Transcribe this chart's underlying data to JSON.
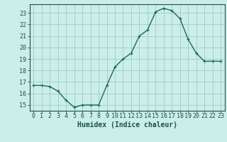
{
  "x": [
    0,
    1,
    2,
    3,
    4,
    5,
    6,
    7,
    8,
    9,
    10,
    11,
    12,
    13,
    14,
    15,
    16,
    17,
    18,
    19,
    20,
    21,
    22,
    23
  ],
  "y": [
    16.7,
    16.7,
    16.6,
    16.2,
    15.4,
    14.8,
    15.0,
    15.0,
    15.0,
    16.7,
    18.3,
    19.0,
    19.5,
    21.0,
    21.5,
    23.1,
    23.4,
    23.2,
    22.5,
    20.7,
    19.5,
    18.8,
    18.8,
    18.8
  ],
  "xlabel": "Humidex (Indice chaleur)",
  "xlim": [
    -0.5,
    23.5
  ],
  "ylim": [
    14.5,
    23.75
  ],
  "yticks": [
    15,
    16,
    17,
    18,
    19,
    20,
    21,
    22,
    23
  ],
  "xticks": [
    0,
    1,
    2,
    3,
    4,
    5,
    6,
    7,
    8,
    9,
    10,
    11,
    12,
    13,
    14,
    15,
    16,
    17,
    18,
    19,
    20,
    21,
    22,
    23
  ],
  "line_color": "#1a6b5a",
  "marker": "+",
  "bg_color": "#cceee8",
  "grid_color": "#99cccc",
  "axis_color": "#1a5050",
  "label_fontsize": 7.0,
  "tick_fontsize": 6.0
}
